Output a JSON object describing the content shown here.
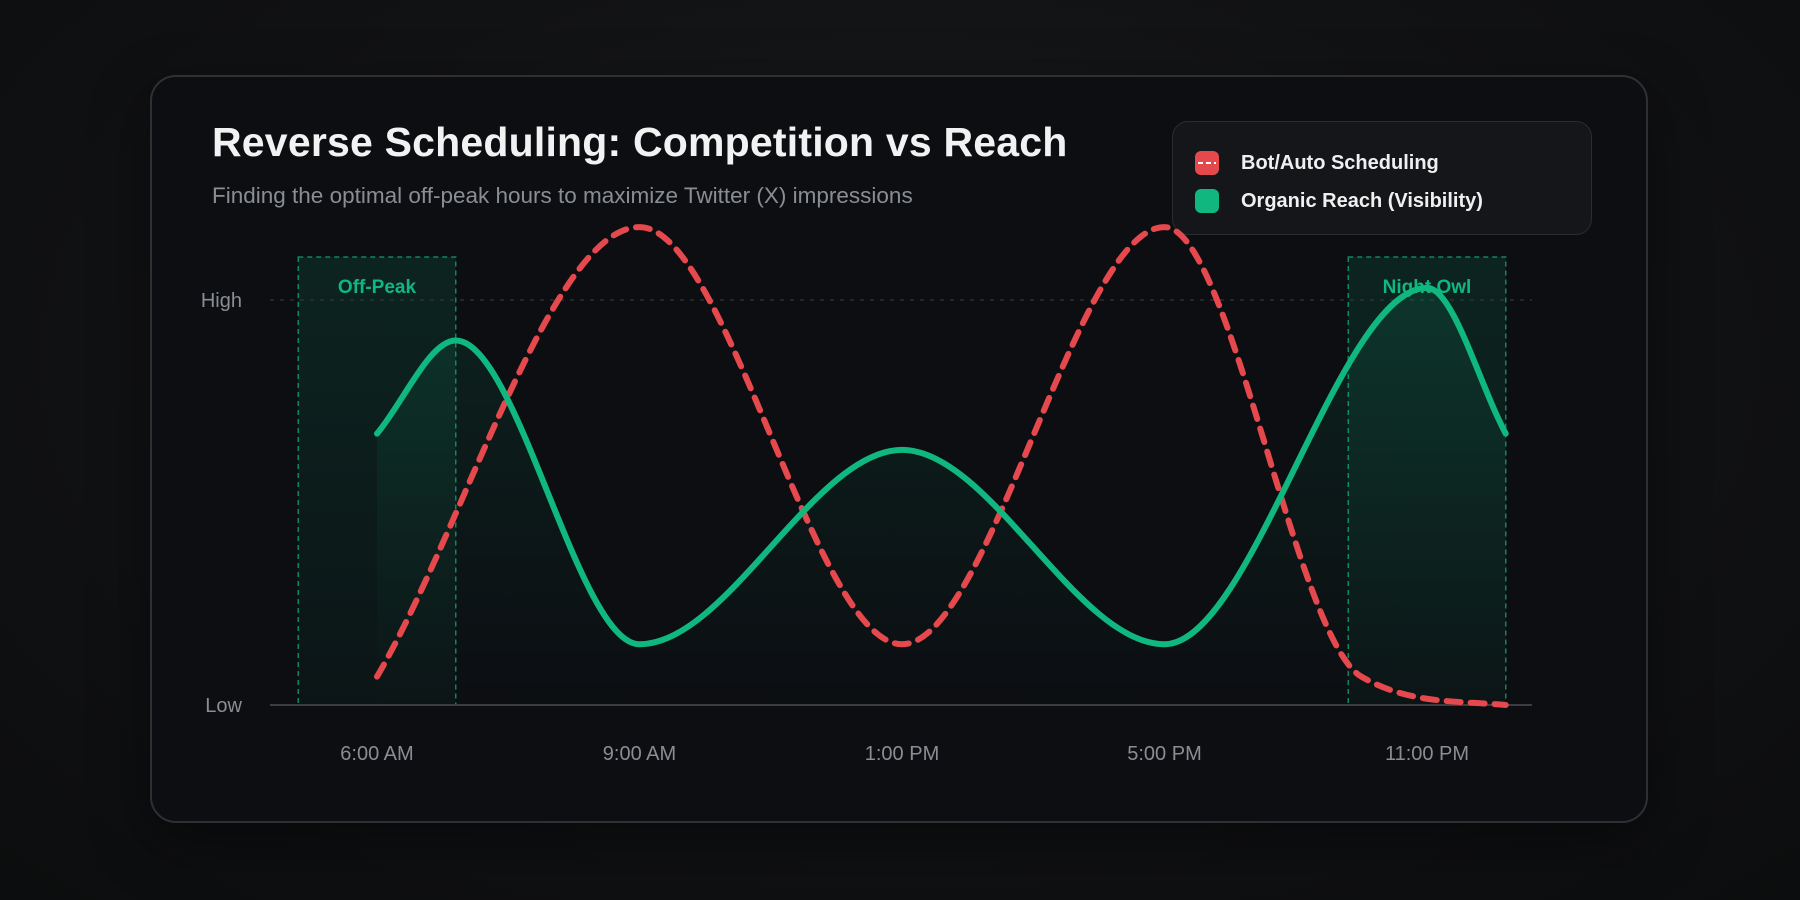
{
  "title": "Reverse Scheduling: Competition vs Reach",
  "subtitle": "Finding the optimal off-peak hours to maximize Twitter (X) impressions",
  "legend": {
    "items": [
      {
        "label": "Bot/Auto Scheduling",
        "color": "#e5484d",
        "style": "dashed"
      },
      {
        "label": "Organic Reach (Visibility)",
        "color": "#10b77f",
        "style": "solid"
      }
    ]
  },
  "colors": {
    "bot": "#e5484d",
    "organic": "#10b77f",
    "axis": "#3a3d42",
    "text_muted": "#8a8d92"
  },
  "chart_data": {
    "type": "line",
    "title": "Reverse Scheduling: Competition vs Reach",
    "subtitle": "Finding the optimal off-peak hours to maximize Twitter (X) impressions",
    "xlabel": "",
    "ylabel": "",
    "x": [
      "6:00 AM",
      "9:00 AM",
      "1:00 PM",
      "5:00 PM",
      "11:00 PM"
    ],
    "y_ticks": [
      "Low",
      "High"
    ],
    "ylim": [
      0,
      100
    ],
    "series": [
      {
        "name": "Bot/Auto Scheduling",
        "style": "dashed",
        "color": "#e5484d",
        "points": [
          [
            0,
            7
          ],
          [
            1,
            118
          ],
          [
            2,
            15
          ],
          [
            3,
            118
          ],
          [
            3.75,
            7
          ],
          [
            4.3,
            0
          ]
        ]
      },
      {
        "name": "Organic Reach (Visibility)",
        "style": "solid",
        "color": "#10b77f",
        "filled": true,
        "points": [
          [
            0,
            67
          ],
          [
            0.3,
            90
          ],
          [
            1,
            15
          ],
          [
            2,
            63
          ],
          [
            3,
            15
          ],
          [
            4,
            103
          ],
          [
            4.3,
            67
          ]
        ]
      }
    ],
    "highlight_zones": [
      {
        "label": "Off-Peak",
        "from": -0.3,
        "to": 0.3
      },
      {
        "label": "Night Owl",
        "from": 3.7,
        "to": 4.3
      }
    ],
    "legend_position": "top-right",
    "grid": "dashed line at High"
  }
}
